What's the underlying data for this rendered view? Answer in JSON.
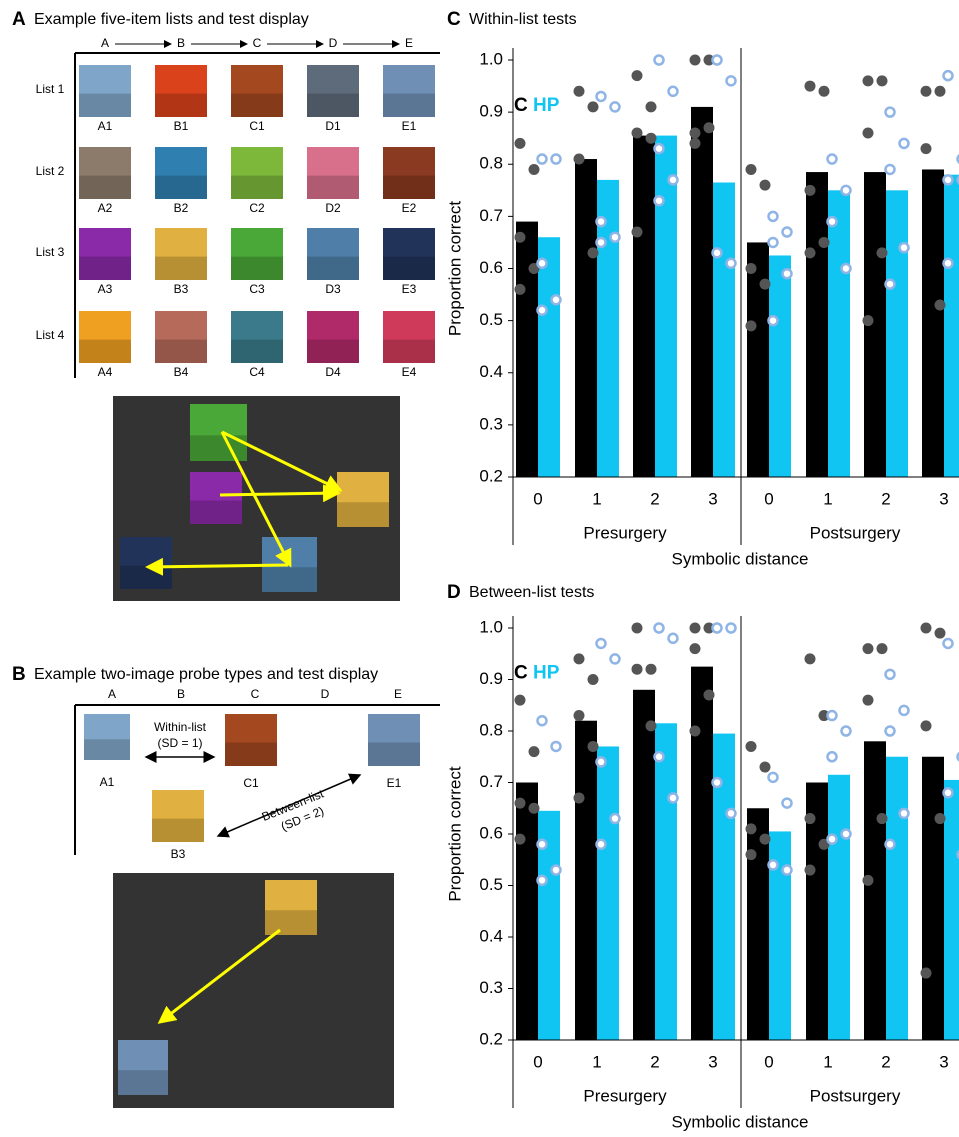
{
  "panel_a": {
    "label": "A",
    "title": "Example five-item lists and test display",
    "columns": [
      "A",
      "B",
      "C",
      "D",
      "E"
    ],
    "lists": [
      {
        "label": "List 1",
        "items": [
          "A1",
          "B1",
          "C1",
          "D1",
          "E1"
        ]
      },
      {
        "label": "List 2",
        "items": [
          "A2",
          "B2",
          "C2",
          "D2",
          "E2"
        ]
      },
      {
        "label": "List 3",
        "items": [
          "A3",
          "B3",
          "C3",
          "D3",
          "E3"
        ]
      },
      {
        "label": "List 4",
        "items": [
          "A4",
          "B4",
          "C4",
          "D4",
          "E4"
        ]
      }
    ]
  },
  "panel_b": {
    "label": "B",
    "title": "Example two-image probe types and test display",
    "columns": [
      "A",
      "B",
      "C",
      "D",
      "E"
    ],
    "items": [
      "A1",
      "C1",
      "E1",
      "B3"
    ],
    "probes": [
      {
        "label": "Within-list",
        "sd": "(SD = 1)"
      },
      {
        "label": "Between-list",
        "sd": "(SD = 2)"
      }
    ]
  },
  "chart_data": [
    {
      "type": "bar",
      "panel_label": "C",
      "title": "Within-list tests",
      "ylabel": "Proportion correct",
      "xlabel": "Symbolic distance",
      "categories": [
        "0",
        "1",
        "2",
        "3",
        "0",
        "1",
        "2",
        "3"
      ],
      "group_labels": [
        "Presurgery",
        "Postsurgery"
      ],
      "series": [
        {
          "name": "C",
          "color": "#000000",
          "point_color": "#555555",
          "values": [
            0.69,
            0.81,
            0.855,
            0.91,
            0.65,
            0.785,
            0.785,
            0.79
          ],
          "points": [
            [
              0.84,
              0.79,
              0.66,
              0.6,
              0.56
            ],
            [
              0.94,
              0.91,
              0.81,
              0.63
            ],
            [
              0.97,
              0.91,
              0.86,
              0.85,
              0.67
            ],
            [
              1,
              1,
              0.86,
              0.87,
              0.84
            ],
            [
              0.79,
              0.76,
              0.6,
              0.57,
              0.49
            ],
            [
              0.95,
              0.94,
              0.75,
              0.65,
              0.63
            ],
            [
              0.96,
              0.96,
              0.86,
              0.63,
              0.5
            ],
            [
              0.94,
              0.94,
              0.83,
              0.53
            ]
          ]
        },
        {
          "name": "HP",
          "color": "#11c5f2",
          "point_color": "#8fb4e6",
          "values": [
            0.66,
            0.77,
            0.855,
            0.765,
            0.625,
            0.75,
            0.75,
            0.78
          ],
          "points": [
            [
              0.81,
              0.81,
              0.61,
              0.54,
              0.52
            ],
            [
              0.93,
              0.91,
              0.69,
              0.66,
              0.65
            ],
            [
              1,
              0.94,
              0.83,
              0.77,
              0.73
            ],
            [
              1,
              0.96,
              0.63,
              0.61
            ],
            [
              0.7,
              0.67,
              0.65,
              0.59,
              0.5
            ],
            [
              0.81,
              0.75,
              0.69,
              0.6
            ],
            [
              0.9,
              0.84,
              0.79,
              0.64,
              0.57
            ],
            [
              0.97,
              0.81,
              0.77,
              0.77,
              0.61
            ]
          ]
        }
      ],
      "ylim": [
        0.2,
        1
      ],
      "yticks": [
        0.2,
        0.3,
        0.4,
        0.5,
        0.6,
        0.7,
        0.8,
        0.9,
        {
          "value": 1,
          "label": "1.0"
        }
      ]
    },
    {
      "type": "bar",
      "panel_label": "D",
      "title": "Between-list tests",
      "ylabel": "Proportion correct",
      "xlabel": "Symbolic distance",
      "categories": [
        "0",
        "1",
        "2",
        "3",
        "0",
        "1",
        "2",
        "3"
      ],
      "group_labels": [
        "Presurgery",
        "Postsurgery"
      ],
      "series": [
        {
          "name": "C",
          "color": "#000000",
          "point_color": "#555555",
          "values": [
            0.7,
            0.82,
            0.88,
            0.925,
            0.65,
            0.7,
            0.78,
            0.75
          ],
          "points": [
            [
              0.86,
              0.76,
              0.66,
              0.65,
              0.59
            ],
            [
              0.94,
              0.9,
              0.83,
              0.77,
              0.67
            ],
            [
              1,
              0.92,
              0.92,
              0.81
            ],
            [
              1,
              1,
              0.96,
              0.87,
              0.8
            ],
            [
              0.77,
              0.73,
              0.61,
              0.59,
              0.56
            ],
            [
              0.94,
              0.83,
              0.63,
              0.58,
              0.53
            ],
            [
              0.96,
              0.96,
              0.86,
              0.63,
              0.51
            ],
            [
              1,
              0.99,
              0.81,
              0.63,
              0.33
            ]
          ]
        },
        {
          "name": "HP",
          "color": "#11c5f2",
          "point_color": "#8fb4e6",
          "values": [
            0.645,
            0.77,
            0.815,
            0.795,
            0.605,
            0.715,
            0.75,
            0.705
          ],
          "points": [
            [
              0.82,
              0.77,
              0.58,
              0.53,
              0.51
            ],
            [
              0.97,
              0.94,
              0.74,
              0.63,
              0.58
            ],
            [
              1,
              0.98,
              0.75,
              0.67
            ],
            [
              1,
              1,
              0.7,
              0.64
            ],
            [
              0.71,
              0.66,
              0.54,
              0.53
            ],
            [
              0.83,
              0.8,
              0.75,
              0.6,
              0.59
            ],
            [
              0.91,
              0.84,
              0.8,
              0.64,
              0.58
            ],
            [
              0.97,
              0.75,
              0.68,
              0.56
            ]
          ]
        }
      ],
      "ylim": [
        0.2,
        1
      ],
      "yticks": [
        0.2,
        0.3,
        0.4,
        0.5,
        0.6,
        0.7,
        0.8,
        0.9,
        {
          "value": 1,
          "label": "1.0"
        }
      ]
    }
  ]
}
